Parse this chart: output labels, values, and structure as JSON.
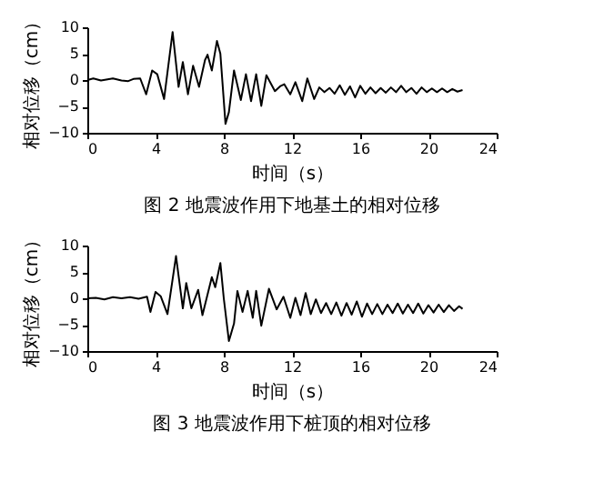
{
  "chart_data": [
    {
      "type": "line",
      "xlabel": "时间（s）",
      "ylabel": "相对位移（cm）",
      "annotations": [
        "图 2  地震波作用下地基土的相对位移"
      ],
      "xlim": [
        0,
        24
      ],
      "xticks": [
        0,
        4,
        8,
        12,
        16,
        20,
        24
      ],
      "ylim": [
        -10,
        10
      ],
      "yticks": [
        -10,
        -5,
        0,
        5,
        10
      ],
      "grid": false,
      "series": [
        {
          "color": "#000000",
          "x": [
            0,
            0.35,
            0.8,
            1.5,
            2.0,
            2.4,
            2.7,
            3.1,
            3.45,
            3.8,
            4.1,
            4.5,
            5.0,
            5.35,
            5.6,
            5.9,
            6.2,
            6.55,
            6.9,
            7.05,
            7.3,
            7.6,
            7.8,
            8.1,
            8.3,
            8.6,
            9.0,
            9.3,
            9.6,
            9.9,
            10.2,
            10.5,
            11.0,
            11.3,
            11.55,
            11.9,
            12.2,
            12.6,
            12.9,
            13.3,
            13.6,
            13.9,
            14.2,
            14.5,
            14.8,
            15.1,
            15.4,
            15.7,
            16.0,
            16.3,
            16.6,
            16.9,
            17.2,
            17.5,
            17.8,
            18.1,
            18.4,
            18.7,
            19.0,
            19.3,
            19.6,
            19.9,
            20.2,
            20.5,
            20.8,
            21.1,
            21.4,
            21.7,
            22.0
          ],
          "values": [
            0,
            0.3,
            -0.1,
            0.3,
            -0.1,
            -0.2,
            0.2,
            0.3,
            -2.7,
            1.8,
            1.1,
            -3.6,
            9.1,
            -1.3,
            3.4,
            -2.7,
            2.7,
            -1.3,
            3.8,
            4.8,
            1.8,
            7.4,
            5,
            -8.3,
            -6.1,
            1.8,
            -3.8,
            1.1,
            -4,
            1.1,
            -4.9,
            0.9,
            -2.1,
            -1.2,
            -0.8,
            -2.7,
            -0.4,
            -4,
            0.3,
            -3.6,
            -1.4,
            -2.3,
            -1.5,
            -2.6,
            -1.0,
            -2.8,
            -1.2,
            -3.3,
            -1.1,
            -2.6,
            -1.4,
            -2.5,
            -1.5,
            -2.4,
            -1.4,
            -2.3,
            -1.1,
            -2.3,
            -1.5,
            -2.6,
            -1.4,
            -2.3,
            -1.6,
            -2.3,
            -1.6,
            -2.3,
            -1.7,
            -2.2,
            -1.9
          ]
        }
      ]
    },
    {
      "type": "line",
      "xlabel": "时间（s）",
      "ylabel": "相对位移（cm）",
      "annotations": [
        "图 3  地震波作用下桩顶的相对位移"
      ],
      "xlim": [
        0,
        24
      ],
      "xticks": [
        0,
        4,
        8,
        12,
        16,
        20,
        24
      ],
      "ylim": [
        -10,
        10
      ],
      "yticks": [
        -10,
        -5,
        0,
        5,
        10
      ],
      "grid": false,
      "series": [
        {
          "color": "#000000",
          "x": [
            0,
            0.5,
            1.0,
            1.5,
            2.0,
            2.5,
            3.0,
            3.5,
            3.7,
            4.0,
            4.3,
            4.7,
            5.2,
            5.6,
            5.8,
            6.1,
            6.5,
            6.75,
            7.3,
            7.5,
            7.8,
            8.0,
            8.3,
            8.6,
            8.8,
            9.1,
            9.4,
            9.7,
            9.9,
            10.2,
            10.65,
            11.1,
            11.5,
            11.9,
            12.2,
            12.5,
            12.8,
            13.1,
            13.4,
            13.7,
            14.0,
            14.3,
            14.6,
            14.9,
            15.2,
            15.5,
            15.8,
            16.1,
            16.4,
            16.7,
            17.0,
            17.3,
            17.6,
            17.9,
            18.2,
            18.5,
            18.8,
            19.1,
            19.4,
            19.7,
            20.0,
            20.3,
            20.6,
            20.9,
            21.2,
            21.5,
            21.8,
            22.0
          ],
          "values": [
            0,
            0.1,
            -0.2,
            0.2,
            0,
            0.2,
            -0.1,
            0.3,
            -2.6,
            1.2,
            0.4,
            -3,
            8,
            -1.9,
            2.9,
            -1.9,
            1.6,
            -3.2,
            4,
            2.1,
            6.7,
            0,
            -8.1,
            -4.8,
            1.4,
            -2.6,
            1.4,
            -3.7,
            1.4,
            -5.2,
            1.8,
            -2.1,
            0.3,
            -3.7,
            0.1,
            -3.2,
            1,
            -3,
            -0.2,
            -2.8,
            -0.9,
            -3,
            -0.8,
            -3.3,
            -0.9,
            -3.1,
            -0.6,
            -3.5,
            -1.0,
            -3,
            -1.1,
            -3,
            -1.2,
            -2.8,
            -1.0,
            -2.9,
            -1.2,
            -2.8,
            -1.0,
            -2.9,
            -1.3,
            -2.7,
            -1.2,
            -2.6,
            -1.3,
            -2.4,
            -1.5,
            -2.0
          ]
        }
      ]
    }
  ]
}
